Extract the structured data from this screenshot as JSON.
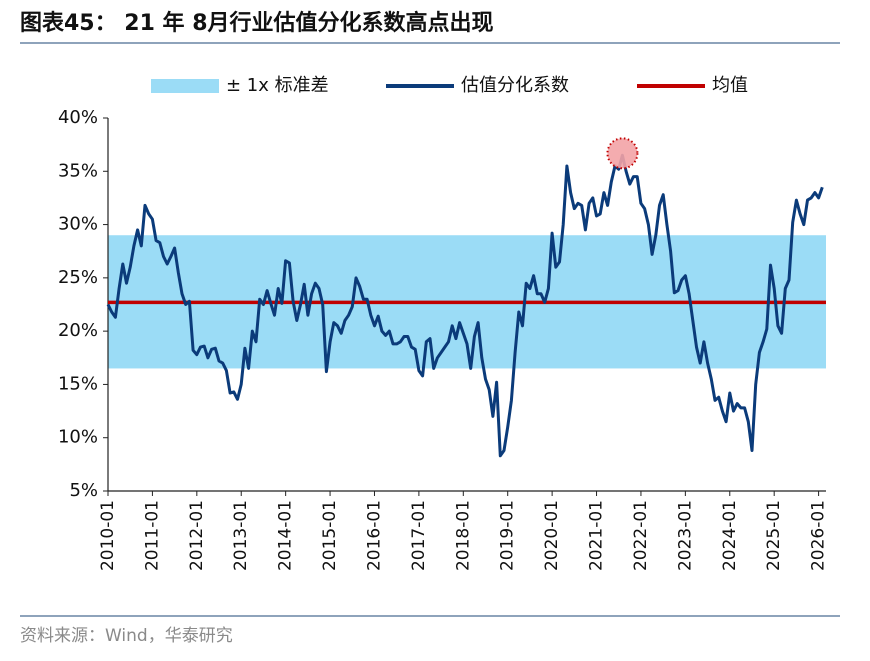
{
  "chart_data": {
    "type": "line",
    "title": "图表45：  21 年  8月行业估值分化系数高点出现",
    "source": "资料来源：Wind，华泰研究",
    "x": [
      "2010-01",
      "2010-02",
      "2010-03",
      "2010-04",
      "2010-05",
      "2010-06",
      "2010-07",
      "2010-08",
      "2010-09",
      "2010-10",
      "2010-11",
      "2010-12",
      "2011-01",
      "2011-02",
      "2011-03",
      "2011-04",
      "2011-05",
      "2011-06",
      "2011-07",
      "2011-08",
      "2011-09",
      "2011-10",
      "2011-11",
      "2011-12",
      "2012-01",
      "2012-02",
      "2012-03",
      "2012-04",
      "2012-05",
      "2012-06",
      "2012-07",
      "2012-08",
      "2012-09",
      "2012-10",
      "2012-11",
      "2012-12",
      "2013-01",
      "2013-02",
      "2013-03",
      "2013-04",
      "2013-05",
      "2013-06",
      "2013-07",
      "2013-08",
      "2013-09",
      "2013-10",
      "2013-11",
      "2013-12",
      "2014-01",
      "2014-02",
      "2014-03",
      "2014-04",
      "2014-05",
      "2014-06",
      "2014-07",
      "2014-08",
      "2014-09",
      "2014-10",
      "2014-11",
      "2014-12",
      "2015-01",
      "2015-02",
      "2015-03",
      "2015-04",
      "2015-05",
      "2015-06",
      "2015-07",
      "2015-08",
      "2015-09",
      "2015-10",
      "2015-11",
      "2015-12",
      "2016-01",
      "2016-02",
      "2016-03",
      "2016-04",
      "2016-05",
      "2016-06",
      "2016-07",
      "2016-08",
      "2016-09",
      "2016-10",
      "2016-11",
      "2016-12",
      "2017-01",
      "2017-02",
      "2017-03",
      "2017-04",
      "2017-05",
      "2017-06",
      "2017-07",
      "2017-08",
      "2017-09",
      "2017-10",
      "2017-11",
      "2017-12",
      "2018-01",
      "2018-02",
      "2018-03",
      "2018-04",
      "2018-05",
      "2018-06",
      "2018-07",
      "2018-08",
      "2018-09",
      "2018-10",
      "2018-11",
      "2018-12",
      "2019-01",
      "2019-02",
      "2019-03",
      "2019-04",
      "2019-05",
      "2019-06",
      "2019-07",
      "2019-08",
      "2019-09",
      "2019-10",
      "2019-11",
      "2019-12",
      "2020-01",
      "2020-02",
      "2020-03",
      "2020-04",
      "2020-05",
      "2020-06",
      "2020-07",
      "2020-08",
      "2020-09",
      "2020-10",
      "2020-11",
      "2020-12",
      "2021-01",
      "2021-02",
      "2021-03",
      "2021-04",
      "2021-05",
      "2021-06",
      "2021-07",
      "2021-08",
      "2021-09",
      "2021-10",
      "2021-11",
      "2021-12",
      "2022-01",
      "2022-02",
      "2022-03",
      "2022-04",
      "2022-05",
      "2022-06",
      "2022-07",
      "2022-08",
      "2022-09",
      "2022-10",
      "2022-11",
      "2022-12",
      "2023-01",
      "2023-02",
      "2023-03",
      "2023-04",
      "2023-05",
      "2023-06",
      "2023-07",
      "2023-08",
      "2023-09",
      "2023-10",
      "2023-11",
      "2023-12",
      "2024-01",
      "2024-02",
      "2024-03",
      "2024-04",
      "2024-05",
      "2024-06",
      "2024-07",
      "2024-08",
      "2024-09",
      "2024-10",
      "2024-11",
      "2024-12",
      "2025-01",
      "2025-02",
      "2025-03",
      "2025-04",
      "2025-05",
      "2025-06",
      "2025-07",
      "2025-08",
      "2025-09",
      "2025-10",
      "2025-11",
      "2025-12",
      "2026-01",
      "2026-02"
    ],
    "series": [
      {
        "name": "估值分化系数",
        "color": "#0b3b7a",
        "values": [
          22.5,
          21.8,
          21.3,
          24,
          26.3,
          24.5,
          26,
          28,
          29.5,
          28,
          31.8,
          31,
          30.5,
          28.5,
          28.3,
          27,
          26.3,
          27,
          27.8,
          25.5,
          23.5,
          22.5,
          22.8,
          18.2,
          17.8,
          18.5,
          18.6,
          17.5,
          18.3,
          18.4,
          17.2,
          17,
          16.3,
          14.2,
          14.3,
          13.6,
          15,
          18.4,
          16.5,
          20,
          19,
          23,
          22.5,
          23.8,
          22.6,
          21.5,
          24,
          22.6,
          26.6,
          26.4,
          22.8,
          21,
          22.5,
          24.4,
          21.5,
          23.5,
          24.5,
          24,
          22.5,
          16.2,
          19,
          20.8,
          20.5,
          19.8,
          21,
          21.5,
          22.3,
          25,
          24.2,
          23,
          23,
          21.5,
          20.5,
          21.4,
          20,
          19.6,
          20,
          18.8,
          18.8,
          19,
          19.5,
          19.5,
          18.5,
          18.3,
          16.3,
          15.8,
          19,
          19.3,
          16.5,
          17.5,
          18,
          18.5,
          19,
          20.5,
          19.3,
          20.8,
          19.8,
          18.8,
          16.5,
          19.5,
          20.8,
          17.5,
          15.5,
          14.5,
          12,
          15.2,
          8.3,
          8.8,
          11,
          13.5,
          18,
          21.8,
          20.5,
          24.5,
          24,
          25.2,
          23.5,
          23.5,
          22.7,
          24,
          29.2,
          26,
          26.5,
          30,
          35.5,
          33,
          31.5,
          32,
          31.8,
          29.5,
          32,
          32.5,
          30.8,
          31,
          33,
          31.8,
          34,
          35.5,
          35.2,
          36.5,
          35,
          33.8,
          34.5,
          34.5,
          32,
          31.5,
          30,
          27.2,
          29,
          31.8,
          32.8,
          30,
          27.5,
          23.6,
          23.8,
          24.8,
          25.2,
          23.5,
          21,
          18.5,
          17,
          19,
          17,
          15.5,
          13.5,
          13.8,
          12.5,
          11.5,
          14.2,
          12.5,
          13.2,
          12.8,
          12.8,
          11.5,
          8.8,
          15,
          18,
          19,
          20.2,
          26.2,
          24,
          20.5,
          19.8,
          24,
          24.8,
          30.2,
          32.3,
          31,
          30,
          32.3,
          32.5,
          33,
          32.5,
          33.5
        ]
      }
    ],
    "band": {
      "name": "± 1x 标准差",
      "color": "#9bdcf6",
      "lower": 16.5,
      "upper": 29
    },
    "mean": {
      "name": "均值",
      "color": "#c00000",
      "value": 22.7
    },
    "xlim": [
      "2010-01",
      "2026-03"
    ],
    "xticks": [
      "2010-01",
      "2011-01",
      "2012-01",
      "2013-01",
      "2014-01",
      "2015-01",
      "2016-01",
      "2017-01",
      "2018-01",
      "2019-01",
      "2020-01",
      "2021-01",
      "2022-01",
      "2023-01",
      "2024-01",
      "2025-01",
      "2026-01"
    ],
    "ylim": [
      5,
      40
    ],
    "yticks": [
      {
        "value": 5,
        "label": "5%"
      },
      {
        "value": 10,
        "label": "10%"
      },
      {
        "value": 15,
        "label": "15%"
      },
      {
        "value": 20,
        "label": "20%"
      },
      {
        "value": 25,
        "label": "25%"
      },
      {
        "value": 30,
        "label": "30%"
      },
      {
        "value": 35,
        "label": "35%"
      },
      {
        "value": 40,
        "label": "40%"
      }
    ],
    "legend": "top"
  }
}
